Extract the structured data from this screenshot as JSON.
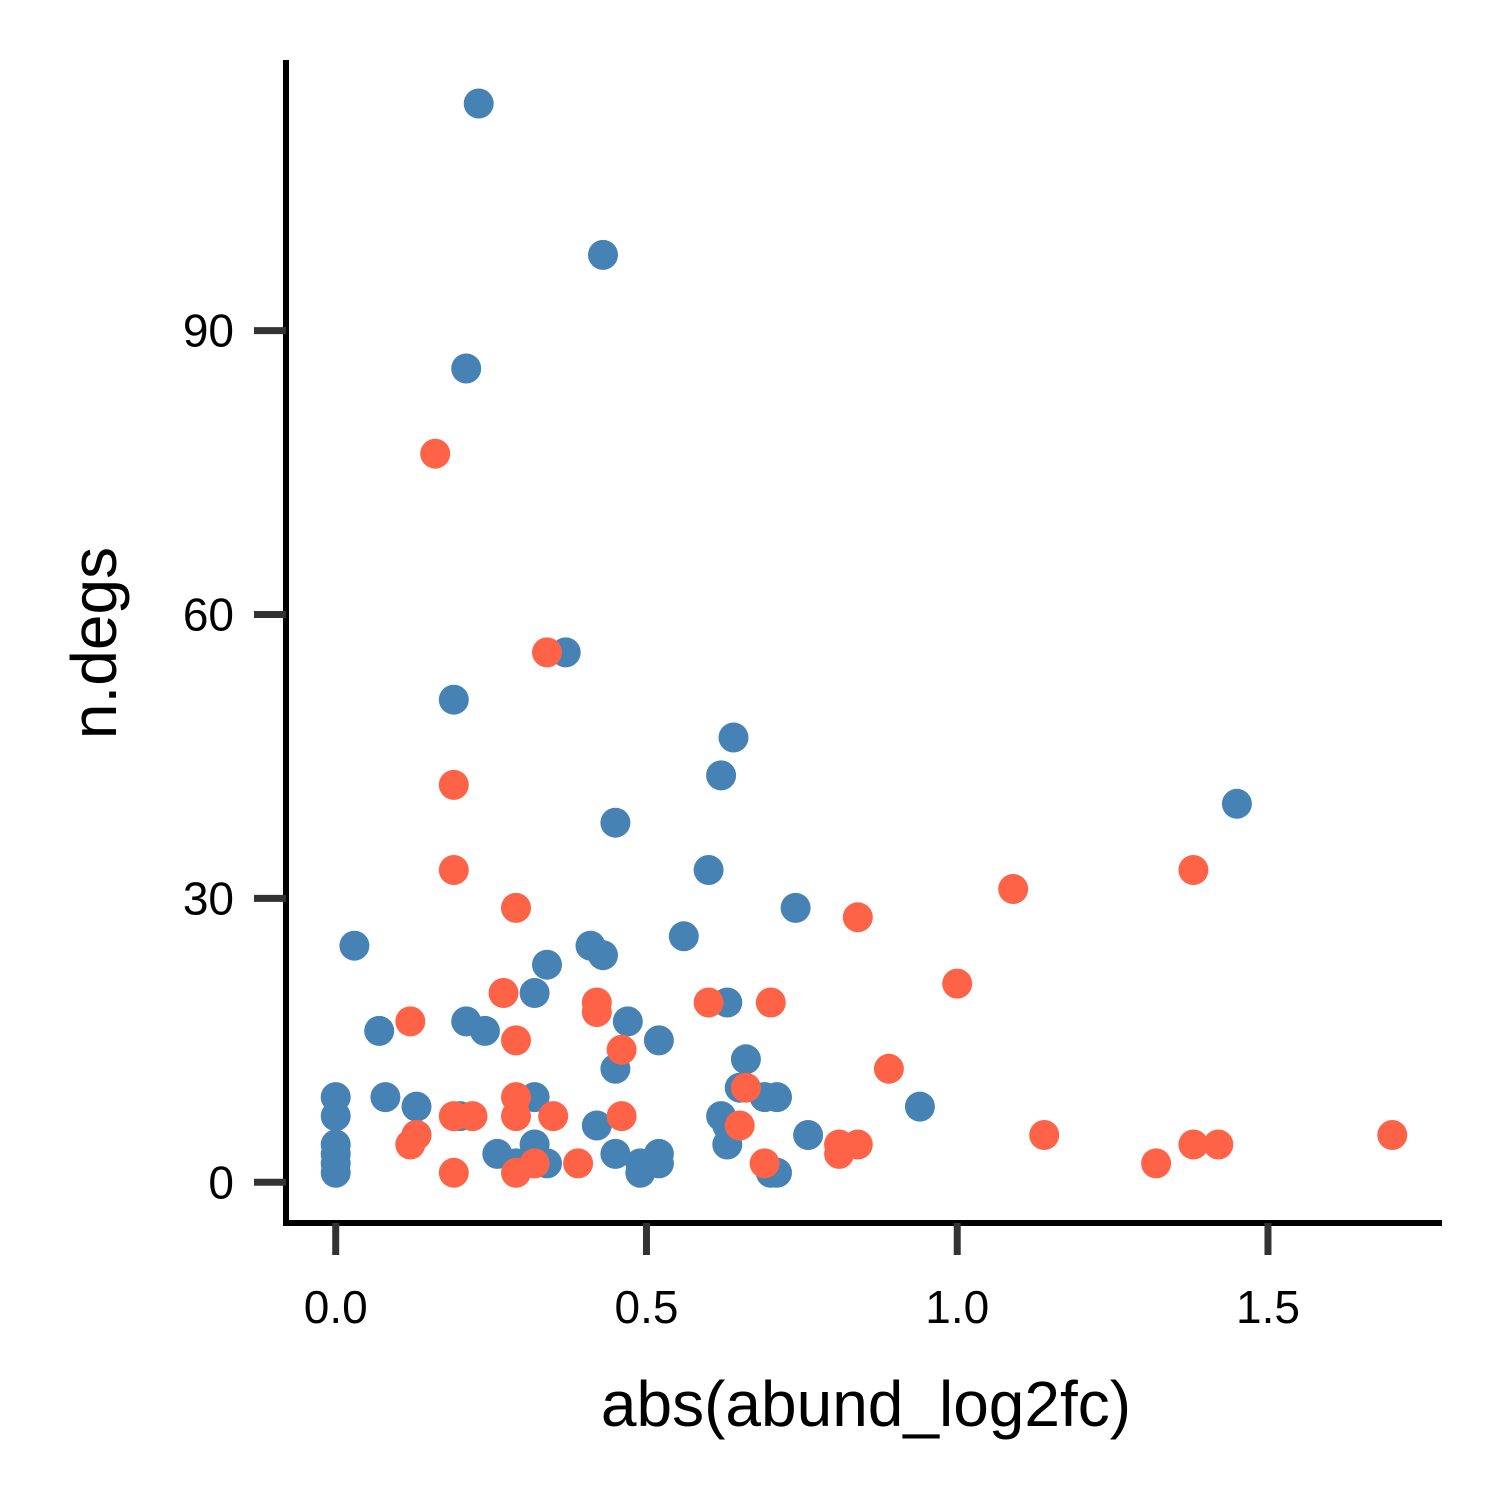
{
  "chart_data": {
    "type": "scatter",
    "title": "",
    "xlabel": "abs(abund_log2fc)",
    "ylabel": "n.degs",
    "xlim": [
      -0.08,
      1.78
    ],
    "ylim": [
      -4.3,
      118.6
    ],
    "x_ticks": [
      0.0,
      0.5,
      1.0,
      1.5
    ],
    "x_tick_labels": [
      "0.0",
      "0.5",
      "1.0",
      "1.5"
    ],
    "y_ticks": [
      0,
      30,
      60,
      90
    ],
    "y_tick_labels": [
      "0",
      "30",
      "60",
      "90"
    ],
    "grid": false,
    "legend": "none",
    "colors": {
      "blue": "#4682B4",
      "red": "#FF6347",
      "axis": "#000000",
      "tick": "#333333"
    },
    "series": [
      {
        "color": "#4682B4",
        "points": [
          [
            0.23,
            114
          ],
          [
            0.43,
            98
          ],
          [
            0.21,
            86
          ],
          [
            0.37,
            56
          ],
          [
            0.19,
            51
          ],
          [
            0.64,
            47
          ],
          [
            0.62,
            43
          ],
          [
            1.45,
            40
          ],
          [
            0.45,
            38
          ],
          [
            0.6,
            33
          ],
          [
            0.74,
            29
          ],
          [
            0.56,
            26
          ],
          [
            0.03,
            25
          ],
          [
            0.41,
            25
          ],
          [
            0.43,
            24
          ],
          [
            0.34,
            23
          ],
          [
            0.32,
            20
          ],
          [
            0.63,
            19
          ],
          [
            0.21,
            17
          ],
          [
            0.47,
            17
          ],
          [
            0.07,
            16
          ],
          [
            0.24,
            16
          ],
          [
            0.52,
            15
          ],
          [
            0.66,
            13
          ],
          [
            0.45,
            12
          ],
          [
            0.65,
            10
          ],
          [
            0.0,
            9
          ],
          [
            0.08,
            9
          ],
          [
            0.32,
            9
          ],
          [
            0.69,
            9
          ],
          [
            0.71,
            9
          ],
          [
            0.13,
            8
          ],
          [
            0.94,
            8
          ],
          [
            0.0,
            7
          ],
          [
            0.2,
            7
          ],
          [
            0.62,
            7
          ],
          [
            0.42,
            6
          ],
          [
            0.63,
            6
          ],
          [
            0.13,
            5
          ],
          [
            0.76,
            5
          ],
          [
            0.0,
            4
          ],
          [
            0.32,
            4
          ],
          [
            0.63,
            4
          ],
          [
            0.0,
            3
          ],
          [
            0.26,
            3
          ],
          [
            0.45,
            3
          ],
          [
            0.52,
            3
          ],
          [
            0.0,
            2
          ],
          [
            0.29,
            2
          ],
          [
            0.34,
            2
          ],
          [
            0.49,
            2
          ],
          [
            0.52,
            2
          ],
          [
            0.0,
            1
          ],
          [
            0.49,
            1
          ],
          [
            0.7,
            1
          ],
          [
            0.71,
            1
          ]
        ]
      },
      {
        "color": "#FF6347",
        "points": [
          [
            0.16,
            77
          ],
          [
            0.34,
            56
          ],
          [
            0.19,
            42
          ],
          [
            0.19,
            33
          ],
          [
            1.38,
            33
          ],
          [
            1.09,
            31
          ],
          [
            0.29,
            29
          ],
          [
            0.84,
            28
          ],
          [
            1.0,
            21
          ],
          [
            0.27,
            20
          ],
          [
            0.42,
            19
          ],
          [
            0.6,
            19
          ],
          [
            0.7,
            19
          ],
          [
            0.42,
            18
          ],
          [
            0.12,
            17
          ],
          [
            0.29,
            15
          ],
          [
            0.46,
            14
          ],
          [
            0.89,
            12
          ],
          [
            0.66,
            10
          ],
          [
            0.29,
            9
          ],
          [
            0.19,
            7
          ],
          [
            0.22,
            7
          ],
          [
            0.29,
            7
          ],
          [
            0.35,
            7
          ],
          [
            0.46,
            7
          ],
          [
            0.65,
            6
          ],
          [
            0.13,
            5
          ],
          [
            1.14,
            5
          ],
          [
            1.7,
            5
          ],
          [
            0.12,
            4
          ],
          [
            0.81,
            4
          ],
          [
            0.84,
            4
          ],
          [
            1.38,
            4
          ],
          [
            1.42,
            4
          ],
          [
            0.81,
            3
          ],
          [
            0.32,
            2
          ],
          [
            0.39,
            2
          ],
          [
            0.69,
            2
          ],
          [
            1.32,
            2
          ],
          [
            0.19,
            1
          ],
          [
            0.29,
            1
          ]
        ]
      }
    ]
  }
}
